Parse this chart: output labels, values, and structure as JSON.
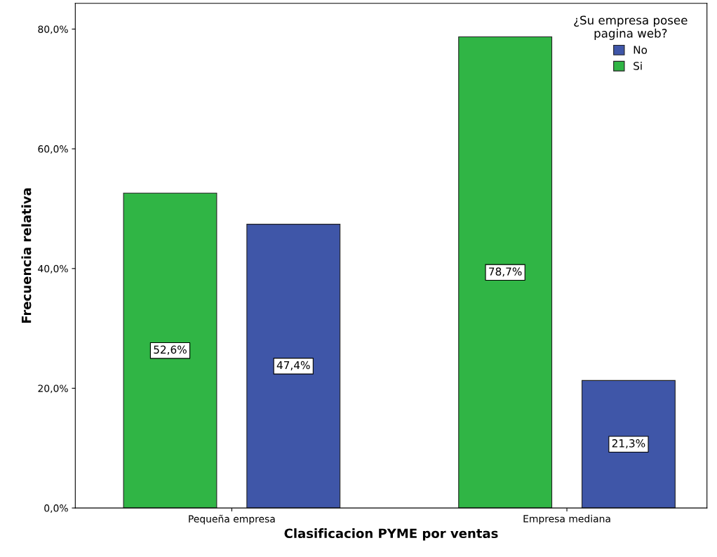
{
  "chart_data": {
    "type": "bar",
    "xlabel": "Clasificacion PYME por ventas",
    "ylabel": "Frecuencia relativa",
    "legend_title": "¿Su empresa posee\npagina web?",
    "categories": [
      "Pequeña empresa",
      "Empresa mediana"
    ],
    "series": [
      {
        "name": "Si",
        "color": "#30b545",
        "values": [
          52.6,
          78.7
        ],
        "value_labels": [
          "52,6%",
          "78,7%"
        ]
      },
      {
        "name": "No",
        "color": "#3f56a8",
        "values": [
          47.4,
          21.3
        ],
        "value_labels": [
          "47,4%",
          "21,3%"
        ]
      }
    ],
    "ylim": [
      0,
      84.3
    ],
    "yticks": [
      {
        "value": 0,
        "label": "0,0%"
      },
      {
        "value": 20,
        "label": "20,0%"
      },
      {
        "value": 40,
        "label": "40,0%"
      },
      {
        "value": 60,
        "label": "60,0%"
      },
      {
        "value": 80,
        "label": "80,0%"
      }
    ],
    "grid": false,
    "legend": "top right"
  }
}
